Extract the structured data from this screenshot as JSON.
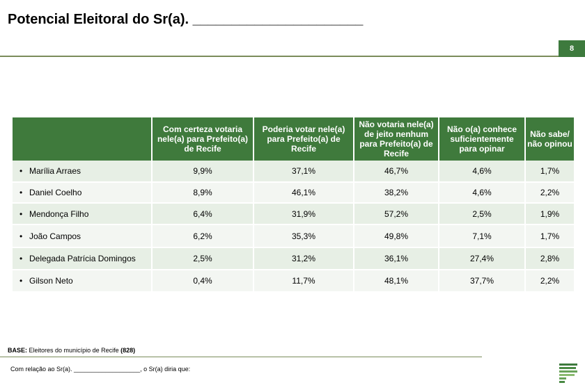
{
  "title": "Potencial Eleitoral do Sr(a). ______________________",
  "page_number": "8",
  "table": {
    "headers": [
      "",
      "Com certeza votaria nele(a) para Prefeito(a) de Recife",
      "Poderia votar nele(a) para Prefeito(a) de Recife",
      "Não votaria nele(a) de jeito nenhum para Prefeito(a) de Recife",
      "Não o(a) conhece suficientemente para opinar",
      "Não sabe/ não opinou"
    ],
    "rows": [
      {
        "name": "Marília Arraes",
        "values": [
          "9,9%",
          "37,1%",
          "46,7%",
          "4,6%",
          "1,7%"
        ]
      },
      {
        "name": "Daniel Coelho",
        "values": [
          "8,9%",
          "46,1%",
          "38,2%",
          "4,6%",
          "2,2%"
        ]
      },
      {
        "name": "Mendonça Filho",
        "values": [
          "6,4%",
          "31,9%",
          "57,2%",
          "2,5%",
          "1,9%"
        ]
      },
      {
        "name": "João Campos",
        "values": [
          "6,2%",
          "35,3%",
          "49,8%",
          "7,1%",
          "1,7%"
        ]
      },
      {
        "name": "Delegada Patrícia Domingos",
        "values": [
          "2,5%",
          "31,2%",
          "36,1%",
          "27,4%",
          "2,8%"
        ]
      },
      {
        "name": "Gilson Neto",
        "values": [
          "0,4%",
          "11,7%",
          "48,1%",
          "37,7%",
          "2,2%"
        ]
      }
    ]
  },
  "base_label": "BASE:",
  "base_text": "Eleitores do município de Recife",
  "base_count": "(828)",
  "footnote": "Com relação ao Sr(a).  ___________________, o Sr(a) diria que:",
  "colors": {
    "header": "#3f7a3c",
    "row_odd": "#e7efe5",
    "row_even": "#f3f6f2",
    "rule": "#7a8b5a",
    "badge": "#3d7a3d"
  }
}
